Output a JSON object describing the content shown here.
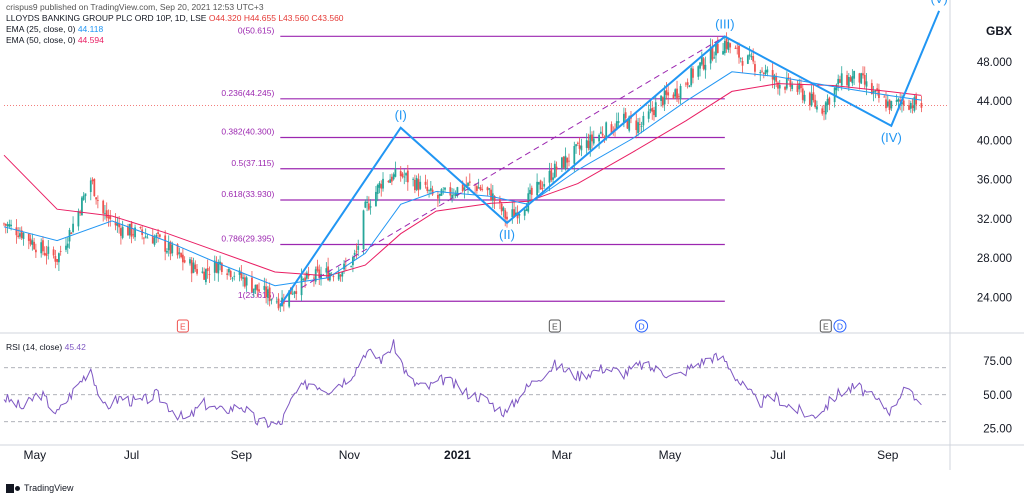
{
  "header": {
    "publisher_line": "crispus9 published on TradingView.com, Sep 20, 2021 12:53 UTC+3",
    "symbol": "LLOYDS BANKING GROUP PLC ORD 10P, 1D, LSE",
    "ohlc": "O44.320  H44.655  L43.560  C43.560",
    "ema25_label": "EMA (25, close, 0)",
    "ema25_value": "44.118",
    "ema50_label": "EMA (50, close, 0)",
    "ema50_value": "44.594",
    "rsi_label": "RSI (14, close)",
    "rsi_value": "45.42"
  },
  "footer": {
    "brand": "TradingView"
  },
  "colors": {
    "fib": "#9c27b0",
    "wave": "#2196f3",
    "ema25": "#2196f3",
    "ema50": "#e91e63",
    "rsi": "#7e57c2",
    "up": "#26a69a",
    "down": "#ef5350",
    "last_price_line": "#ef5350"
  },
  "chart_data": [
    {
      "type": "candlestick",
      "title": "LLOYDS BANKING GROUP PLC ORD 10P, 1D, LSE",
      "currency": "GBX",
      "ylim": [
        21.5,
        53.5
      ],
      "y_ticks": [
        "24.000",
        "28.000",
        "32.000",
        "36.000",
        "40.000",
        "44.000",
        "48.000"
      ],
      "x_ticks": [
        "May",
        "Jul",
        "Sep",
        "Nov",
        "2021",
        "Mar",
        "May",
        "Jul",
        "Sep"
      ],
      "x_tick_dates": [
        "2020-05-01",
        "2020-07-01",
        "2020-09-01",
        "2020-11-01",
        "2021-01-01",
        "2021-03-01",
        "2021-05-01",
        "2021-07-01",
        "2021-09-01"
      ],
      "close_series": [
        [
          "2020-04-20",
          31.5
        ],
        [
          "2020-05-01",
          30.5
        ],
        [
          "2020-05-10",
          29.0
        ],
        [
          "2020-05-20",
          28.0
        ],
        [
          "2020-05-28",
          31.0
        ],
        [
          "2020-06-08",
          36.0
        ],
        [
          "2020-06-15",
          32.5
        ],
        [
          "2020-06-25",
          31.0
        ],
        [
          "2020-07-05",
          30.5
        ],
        [
          "2020-07-15",
          30.0
        ],
        [
          "2020-07-25",
          28.5
        ],
        [
          "2020-08-01",
          27.5
        ],
        [
          "2020-08-10",
          26.5
        ],
        [
          "2020-08-20",
          27.5
        ],
        [
          "2020-09-01",
          26.0
        ],
        [
          "2020-09-10",
          24.8
        ],
        [
          "2020-09-23",
          23.6
        ],
        [
          "2020-10-01",
          25.0
        ],
        [
          "2020-10-10",
          26.0
        ],
        [
          "2020-10-20",
          26.5
        ],
        [
          "2020-10-31",
          27.0
        ],
        [
          "2020-11-05",
          28.5
        ],
        [
          "2020-11-10",
          33.0
        ],
        [
          "2020-11-20",
          36.0
        ],
        [
          "2020-11-30",
          36.5
        ],
        [
          "2020-12-10",
          35.5
        ],
        [
          "2020-12-20",
          34.0
        ],
        [
          "2020-12-31",
          35.0
        ],
        [
          "2021-01-10",
          35.5
        ],
        [
          "2021-01-20",
          34.5
        ],
        [
          "2021-01-29",
          32.0
        ],
        [
          "2021-02-05",
          33.0
        ],
        [
          "2021-02-15",
          35.0
        ],
        [
          "2021-02-25",
          37.0
        ],
        [
          "2021-03-10",
          39.0
        ],
        [
          "2021-03-25",
          41.0
        ],
        [
          "2021-04-05",
          42.0
        ],
        [
          "2021-04-15",
          41.5
        ],
        [
          "2021-04-25",
          44.0
        ],
        [
          "2021-05-05",
          45.0
        ],
        [
          "2021-05-15",
          47.0
        ],
        [
          "2021-05-25",
          49.0
        ],
        [
          "2021-06-01",
          50.0
        ],
        [
          "2021-06-10",
          48.5
        ],
        [
          "2021-06-20",
          47.5
        ],
        [
          "2021-06-30",
          46.0
        ],
        [
          "2021-07-10",
          45.5
        ],
        [
          "2021-07-20",
          44.0
        ],
        [
          "2021-07-25",
          43.0
        ],
        [
          "2021-08-05",
          46.0
        ],
        [
          "2021-08-15",
          46.5
        ],
        [
          "2021-08-25",
          44.5
        ],
        [
          "2021-09-03",
          43.5
        ],
        [
          "2021-09-10",
          44.0
        ],
        [
          "2021-09-20",
          43.56
        ]
      ],
      "ema25_series": [
        [
          "2020-04-20",
          31.2
        ],
        [
          "2020-05-20",
          29.8
        ],
        [
          "2020-06-20",
          31.8
        ],
        [
          "2020-07-20",
          29.8
        ],
        [
          "2020-08-20",
          27.4
        ],
        [
          "2020-09-20",
          25.2
        ],
        [
          "2020-10-20",
          26.0
        ],
        [
          "2020-11-10",
          28.5
        ],
        [
          "2020-11-30",
          33.5
        ],
        [
          "2020-12-20",
          34.8
        ],
        [
          "2021-01-20",
          34.3
        ],
        [
          "2021-02-10",
          33.5
        ],
        [
          "2021-03-10",
          37.0
        ],
        [
          "2021-04-10",
          40.2
        ],
        [
          "2021-05-10",
          44.0
        ],
        [
          "2021-06-05",
          47.0
        ],
        [
          "2021-07-01",
          46.5
        ],
        [
          "2021-08-01",
          45.5
        ],
        [
          "2021-09-01",
          44.6
        ],
        [
          "2021-09-20",
          44.118
        ]
      ],
      "ema50_series": [
        [
          "2020-04-20",
          38.5
        ],
        [
          "2020-05-20",
          33.0
        ],
        [
          "2020-06-20",
          32.3
        ],
        [
          "2020-07-20",
          30.6
        ],
        [
          "2020-08-20",
          28.6
        ],
        [
          "2020-09-20",
          26.6
        ],
        [
          "2020-10-20",
          26.2
        ],
        [
          "2020-11-10",
          27.3
        ],
        [
          "2020-11-30",
          30.5
        ],
        [
          "2020-12-20",
          32.8
        ],
        [
          "2021-01-20",
          33.6
        ],
        [
          "2021-02-10",
          33.8
        ],
        [
          "2021-03-10",
          35.6
        ],
        [
          "2021-04-10",
          38.8
        ],
        [
          "2021-05-10",
          42.0
        ],
        [
          "2021-06-05",
          45.0
        ],
        [
          "2021-07-01",
          45.8
        ],
        [
          "2021-08-01",
          45.6
        ],
        [
          "2021-09-01",
          45.0
        ],
        [
          "2021-09-20",
          44.594
        ]
      ],
      "last_price": 43.56,
      "fib_levels": [
        {
          "label": "0(50.615)",
          "value": 50.615
        },
        {
          "label": "0.236(44.245)",
          "value": 44.245
        },
        {
          "label": "0.382(40.300)",
          "value": 40.3
        },
        {
          "label": "0.5(37.115)",
          "value": 37.115
        },
        {
          "label": "0.618(33.930)",
          "value": 33.93
        },
        {
          "label": "0.786(29.395)",
          "value": 29.395
        },
        {
          "label": "1(23.615)",
          "value": 23.615
        }
      ],
      "fib_range": [
        "2020-09-23",
        "2021-06-01"
      ],
      "elliott_waves": [
        {
          "label": "",
          "date": "2020-09-23",
          "price": 23.2
        },
        {
          "label": "(I)",
          "date": "2020-11-30",
          "price": 41.3
        },
        {
          "label": "(II)",
          "date": "2021-01-29",
          "price": 31.6
        },
        {
          "label": "(III)",
          "date": "2021-06-01",
          "price": 50.6
        },
        {
          "label": "(IV)",
          "date": "2021-09-03",
          "price": 41.5
        },
        {
          "label": "(V)",
          "date": "2021-09-30",
          "price": 53.2
        }
      ],
      "dashed_channel": [
        [
          "2020-10-05",
          25.0
        ],
        [
          "2021-06-01",
          50.6
        ]
      ],
      "event_markers": [
        {
          "label": "E",
          "date": "2020-07-30",
          "style": "earnings-red"
        },
        {
          "label": "E",
          "date": "2021-02-25",
          "style": "earnings"
        },
        {
          "label": "D",
          "date": "2021-04-15",
          "style": "dividend"
        },
        {
          "label": "E",
          "date": "2021-07-28",
          "style": "earnings"
        },
        {
          "label": "D",
          "date": "2021-08-05",
          "style": "dividend"
        }
      ]
    },
    {
      "type": "line",
      "title": "RSI (14, close)",
      "ylim": [
        18,
        92
      ],
      "y_ticks": [
        "25.00",
        "50.00",
        "75.00"
      ],
      "levels": [
        70,
        50,
        30
      ],
      "series": [
        [
          "2020-04-20",
          48
        ],
        [
          "2020-05-01",
          40
        ],
        [
          "2020-05-10",
          52
        ],
        [
          "2020-05-20",
          36
        ],
        [
          "2020-06-01",
          58
        ],
        [
          "2020-06-08",
          70
        ],
        [
          "2020-06-15",
          40
        ],
        [
          "2020-06-25",
          48
        ],
        [
          "2020-07-05",
          44
        ],
        [
          "2020-07-15",
          50
        ],
        [
          "2020-07-25",
          38
        ],
        [
          "2020-08-01",
          30
        ],
        [
          "2020-08-10",
          44
        ],
        [
          "2020-08-20",
          38
        ],
        [
          "2020-09-01",
          42
        ],
        [
          "2020-09-10",
          30
        ],
        [
          "2020-09-23",
          28
        ],
        [
          "2020-10-01",
          50
        ],
        [
          "2020-10-10",
          60
        ],
        [
          "2020-10-20",
          54
        ],
        [
          "2020-10-31",
          62
        ],
        [
          "2020-11-05",
          70
        ],
        [
          "2020-11-10",
          82
        ],
        [
          "2020-11-20",
          76
        ],
        [
          "2020-11-26",
          88
        ],
        [
          "2020-12-05",
          60
        ],
        [
          "2020-12-15",
          55
        ],
        [
          "2020-12-25",
          62
        ],
        [
          "2021-01-05",
          52
        ],
        [
          "2021-01-15",
          48
        ],
        [
          "2021-01-29",
          36
        ],
        [
          "2021-02-05",
          50
        ],
        [
          "2021-02-15",
          62
        ],
        [
          "2021-02-25",
          72
        ],
        [
          "2021-03-10",
          64
        ],
        [
          "2021-03-25",
          70
        ],
        [
          "2021-04-05",
          66
        ],
        [
          "2021-04-15",
          72
        ],
        [
          "2021-04-25",
          68
        ],
        [
          "2021-05-05",
          64
        ],
        [
          "2021-05-15",
          72
        ],
        [
          "2021-05-25",
          78
        ],
        [
          "2021-06-01",
          76
        ],
        [
          "2021-06-10",
          58
        ],
        [
          "2021-06-20",
          44
        ],
        [
          "2021-06-30",
          48
        ],
        [
          "2021-07-10",
          40
        ],
        [
          "2021-07-20",
          34
        ],
        [
          "2021-07-25",
          38
        ],
        [
          "2021-08-05",
          52
        ],
        [
          "2021-08-15",
          56
        ],
        [
          "2021-08-25",
          46
        ],
        [
          "2021-09-03",
          38
        ],
        [
          "2021-09-10",
          56
        ],
        [
          "2021-09-15",
          48
        ],
        [
          "2021-09-20",
          45.42
        ]
      ]
    }
  ]
}
